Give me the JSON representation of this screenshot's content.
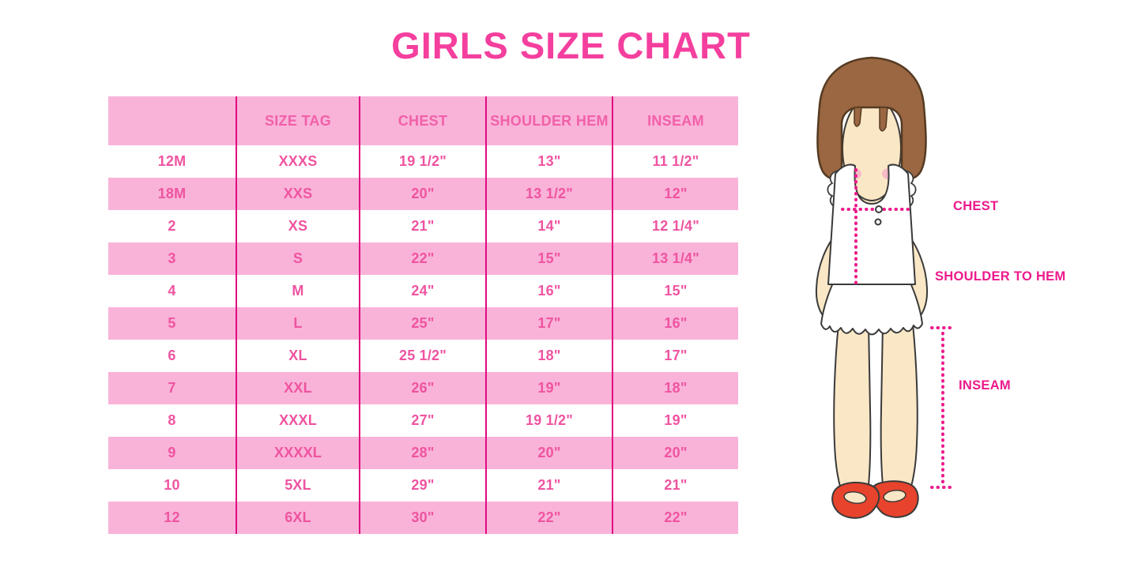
{
  "title": "GIRLS SIZE CHART",
  "chart_data": {
    "type": "table",
    "title": "GIRLS SIZE CHART",
    "columns": [
      "",
      "SIZE TAG",
      "CHEST",
      "SHOULDER HEM",
      "INSEAM"
    ],
    "rows": [
      [
        "12M",
        "XXXS",
        "19 1/2\"",
        "13\"",
        "11 1/2\""
      ],
      [
        "18M",
        "XXS",
        "20\"",
        "13 1/2\"",
        "12\""
      ],
      [
        "2",
        "XS",
        "21\"",
        "14\"",
        "12 1/4\""
      ],
      [
        "3",
        "S",
        "22\"",
        "15\"",
        "13 1/4\""
      ],
      [
        "4",
        "M",
        "24\"",
        "16\"",
        "15\""
      ],
      [
        "5",
        "L",
        "25\"",
        "17\"",
        "16\""
      ],
      [
        "6",
        "XL",
        "25 1/2\"",
        "18\"",
        "17\""
      ],
      [
        "7",
        "XXL",
        "26\"",
        "19\"",
        "18\""
      ],
      [
        "8",
        "XXXL",
        "27\"",
        "19 1/2\"",
        "19\""
      ],
      [
        "9",
        "XXXXL",
        "28\"",
        "20\"",
        "20\""
      ],
      [
        "10",
        "5XL",
        "29\"",
        "21\"",
        "21\""
      ],
      [
        "12",
        "6XL",
        "30\"",
        "22\"",
        "22\""
      ]
    ]
  },
  "diagram": {
    "chest_label": "CHEST",
    "shoulder_to_hem_label": "SHOULDER TO HEM",
    "inseam_label": "INSEAM"
  },
  "colors": {
    "title_pink": "#F43F9E",
    "row_pink": "#F9B3D9",
    "table_text_pink": "#EF54A0",
    "divider_magenta": "#E0097E",
    "annotation_pink": "#EC1A8B",
    "hair_brown": "#9A6742",
    "skin": "#FAE7C6",
    "blush": "#F5AEC4",
    "shoe_red": "#E8432C",
    "outline": "#3A3A3A"
  }
}
